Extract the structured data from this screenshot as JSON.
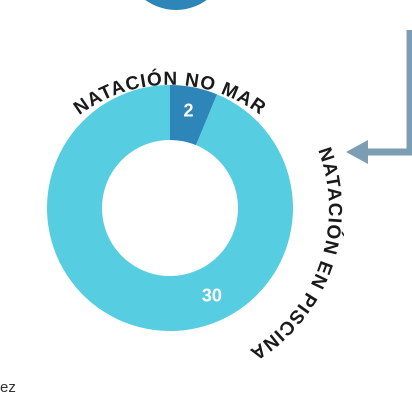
{
  "chart_data": {
    "type": "donut",
    "categories": [
      "NATACIÓN NO MAR",
      "NATACIÓN EN PISCINA"
    ],
    "values": [
      2,
      30
    ],
    "colors": [
      "#2e86b8",
      "#56cde0"
    ]
  },
  "caption": "ez"
}
